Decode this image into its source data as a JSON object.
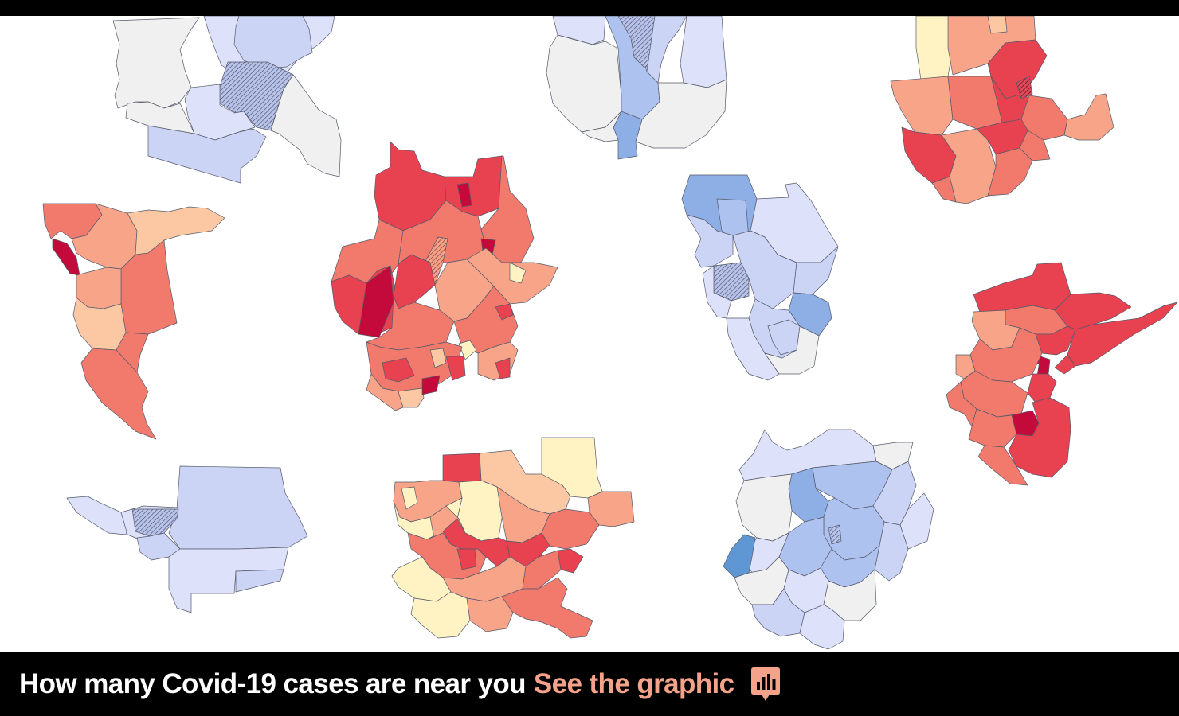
{
  "banner": {
    "headline": "How many Covid-19 cases are near you",
    "cta_label": "See the graphic",
    "cta_icon": "bar-chart-icon",
    "cta_color": "#f4a38a",
    "background": "#000000"
  },
  "map_palette": {
    "deep_red": "#c30a3a",
    "red": "#e8414f",
    "salmon": "#f17a6c",
    "light_salmon": "#f8a488",
    "peach": "#fcc8a4",
    "cream": "#fff3c4",
    "gray": "#f0f0f0",
    "pale_blue": "#dde2fa",
    "light_blue": "#ccd4f5",
    "blue": "#aec2ef",
    "mid_blue": "#8eaee6",
    "deep_blue": "#5f97d4",
    "hatched": "#8b95b8"
  },
  "regions": [
    {
      "id": "seattle-area",
      "tone": "blue"
    },
    {
      "id": "chicago-area",
      "tone": "blue"
    },
    {
      "id": "boston-area",
      "tone": "red"
    },
    {
      "id": "sf-bay-area",
      "tone": "red"
    },
    {
      "id": "atlanta-area",
      "tone": "red"
    },
    {
      "id": "tampa-area",
      "tone": "blue"
    },
    {
      "id": "new-york-area",
      "tone": "red"
    },
    {
      "id": "los-angeles-area",
      "tone": "blue"
    },
    {
      "id": "houston-area",
      "tone": "red"
    },
    {
      "id": "washington-dc-area",
      "tone": "blue"
    }
  ]
}
